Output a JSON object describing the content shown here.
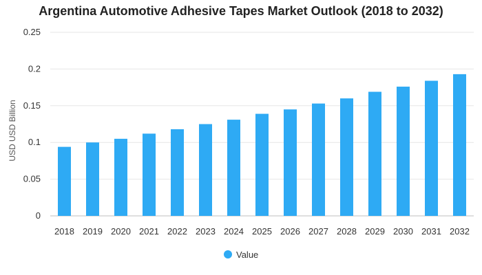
{
  "chart_data": {
    "type": "bar",
    "title": "Argentina Automotive Adhesive Tapes Market Outlook (2018 to 2032)",
    "xlabel": "",
    "ylabel": "USD USD Billion",
    "ylim": [
      0,
      0.25
    ],
    "yticks": [
      "0",
      "0.05",
      "0.1",
      "0.15",
      "0.2",
      "0.25"
    ],
    "grid": true,
    "legend_position": "bottom",
    "categories": [
      "2018",
      "2019",
      "2020",
      "2021",
      "2022",
      "2023",
      "2024",
      "2025",
      "2026",
      "2027",
      "2028",
      "2029",
      "2030",
      "2031",
      "2032"
    ],
    "series": [
      {
        "name": "Value",
        "color": "#2eaaf4",
        "values": [
          0.094,
          0.1,
          0.105,
          0.112,
          0.118,
          0.125,
          0.131,
          0.139,
          0.145,
          0.153,
          0.16,
          0.169,
          0.176,
          0.184,
          0.193
        ]
      }
    ]
  }
}
